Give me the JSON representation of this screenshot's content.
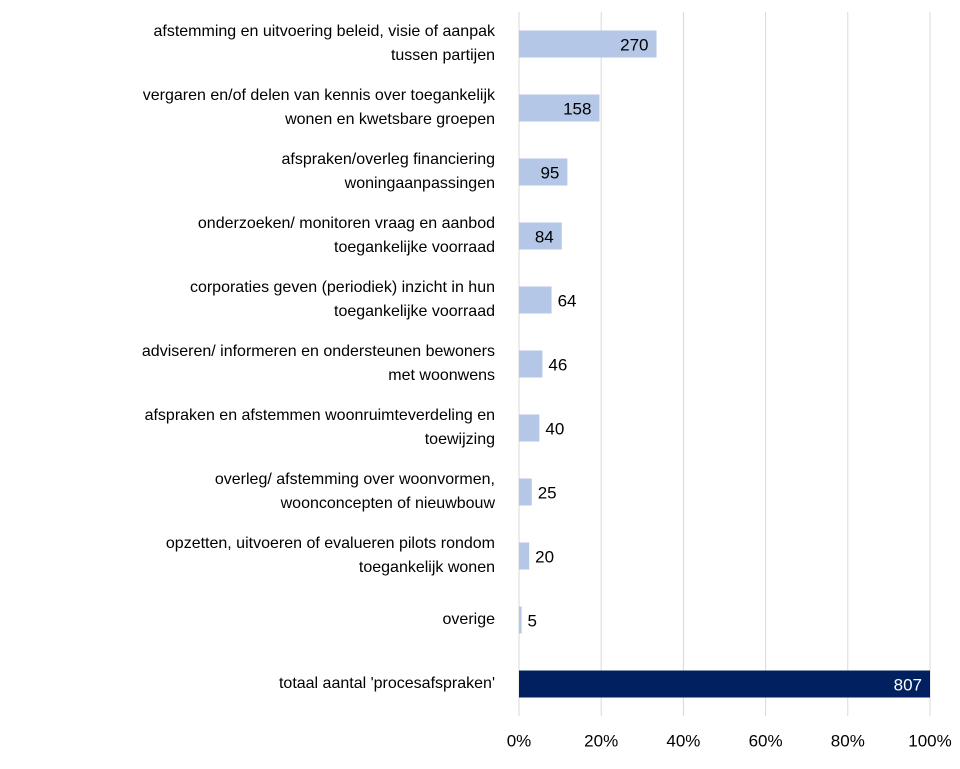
{
  "chart_data": {
    "type": "bar",
    "orientation": "horizontal",
    "categories": [
      "afstemming en uitvoering beleid, visie of aanpak\ntussen partijen",
      "vergaren en/of delen van kennis over toegankelijk\nwonen en kwetsbare groepen",
      "afspraken/overleg financiering\nwoningaanpassingen",
      "onderzoeken/ monitoren vraag en aanbod\ntoegankelijke voorraad",
      "corporaties geven (periodiek) inzicht in hun\ntoegankelijke voorraad",
      "adviseren/ informeren en ondersteunen bewoners\nmet woonwens",
      "afspraken en afstemmen woonruimteverdeling en\ntoewijzing",
      "overleg/ afstemming over woonvormen,\nwoonconcepten of nieuwbouw",
      "opzetten, uitvoeren of evalueren pilots rondom\ntoegankelijk wonen",
      "overige",
      "totaal aantal 'procesafspraken'"
    ],
    "values": [
      270,
      158,
      95,
      84,
      64,
      46,
      40,
      25,
      20,
      5,
      807
    ],
    "colors": [
      "#b4c7e7",
      "#b4c7e7",
      "#b4c7e7",
      "#b4c7e7",
      "#b4c7e7",
      "#b4c7e7",
      "#b4c7e7",
      "#b4c7e7",
      "#b4c7e7",
      "#b4c7e7",
      "#002060"
    ],
    "xlim": [
      0,
      807
    ],
    "xticks": [
      {
        "value": 0,
        "label": "0%"
      },
      {
        "value": 161.4,
        "label": "20%"
      },
      {
        "value": 322.8,
        "label": "40%"
      },
      {
        "value": 484.2,
        "label": "60%"
      },
      {
        "value": 645.6,
        "label": "80%"
      },
      {
        "value": 807,
        "label": "100%"
      }
    ],
    "grid": true
  }
}
